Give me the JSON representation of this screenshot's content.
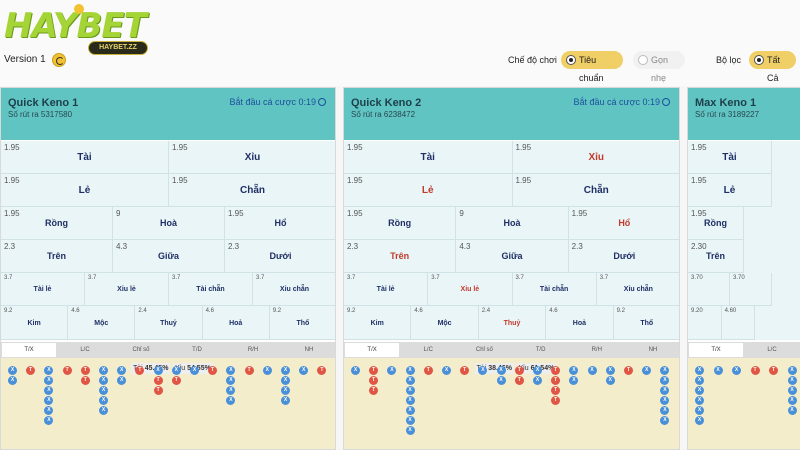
{
  "header": {
    "logo_text": "HAYBET",
    "version_label": "Version 1",
    "url_badge": "HAYBET.ZZ",
    "mode_label": "Chế độ chơi",
    "mode_options": [
      "Tiêu chuẩn",
      "Gọn nhẹ"
    ],
    "filter_label": "Bộ lọc",
    "filter_option": "Tất Cả"
  },
  "colors": {
    "teal": "#60c5c2",
    "accent": "#f0cf66",
    "tai": "#e05544",
    "xiu": "#4a90d8"
  },
  "panels": [
    {
      "title": "Quick Keno 1",
      "draw": "Số rút ra 5317580",
      "start": "Bắt đầu cá cược 0:19",
      "r1": [
        {
          "odds": "1.95",
          "label": "Tài"
        },
        {
          "odds": "1.95",
          "label": "Xỉu"
        }
      ],
      "r2": [
        {
          "odds": "1.95",
          "label": "Lẻ"
        },
        {
          "odds": "1.95",
          "label": "Chẵn"
        }
      ],
      "r3": [
        {
          "odds": "1.95",
          "label": "Rồng"
        },
        {
          "odds": "9",
          "label": "Hoà"
        },
        {
          "odds": "1.95",
          "label": "Hổ"
        }
      ],
      "r4": [
        {
          "odds": "2.3",
          "label": "Trên"
        },
        {
          "odds": "4.3",
          "label": "Giữa"
        },
        {
          "odds": "2.3",
          "label": "Dưới"
        }
      ],
      "r5": [
        {
          "odds": "3.7",
          "label": "Tài lẻ"
        },
        {
          "odds": "3.7",
          "label": "Xỉu lẻ"
        },
        {
          "odds": "3.7",
          "label": "Tài chẵn"
        },
        {
          "odds": "3.7",
          "label": "Xỉu chẵn"
        }
      ],
      "r6": [
        {
          "odds": "9.2",
          "label": "Kim"
        },
        {
          "odds": "4.6",
          "label": "Mộc"
        },
        {
          "odds": "2.4",
          "label": "Thuỷ"
        },
        {
          "odds": "4.6",
          "label": "Hoả"
        },
        {
          "odds": "9.2",
          "label": "Thổ"
        }
      ],
      "tabs": [
        "T/X",
        "L/C",
        "Chỉ số",
        "T/D",
        "R/H",
        "NH"
      ],
      "stat_tai": "Tài",
      "stat_tai_pct": "45.45%",
      "stat_xiu": "Xỉu",
      "stat_xiu_pct": "54.55%",
      "columns": [
        "XX",
        "T",
        "XXXXXX",
        "T",
        "TT",
        "XXXXX",
        "XX",
        "T",
        "XTT",
        "XT",
        "X",
        "T",
        "XXXX",
        "T",
        "X",
        "XXXX",
        "X",
        "T",
        "TTTTTTT",
        "T",
        "T",
        "X"
      ]
    },
    {
      "title": "Quick Keno 2",
      "draw": "Số rút ra 6238472",
      "start": "Bắt đầu cá cược 0:19",
      "r1": [
        {
          "odds": "1.95",
          "label": "Tài"
        },
        {
          "odds": "1.95",
          "label": "Xỉu"
        }
      ],
      "r2": [
        {
          "odds": "1.95",
          "label": "Lẻ"
        },
        {
          "odds": "1.95",
          "label": "Chẵn"
        }
      ],
      "r3": [
        {
          "odds": "1.95",
          "label": "Rồng"
        },
        {
          "odds": "9",
          "label": "Hoà"
        },
        {
          "odds": "1.95",
          "label": "Hổ"
        }
      ],
      "r4": [
        {
          "odds": "2.3",
          "label": "Trên"
        },
        {
          "odds": "4.3",
          "label": "Giữa"
        },
        {
          "odds": "2.3",
          "label": "Dưới"
        }
      ],
      "r5": [
        {
          "odds": "3.7",
          "label": "Tài lẻ"
        },
        {
          "odds": "3.7",
          "label": "Xỉu lẻ"
        },
        {
          "odds": "3.7",
          "label": "Tài chẵn"
        },
        {
          "odds": "3.7",
          "label": "Xỉu chẵn"
        }
      ],
      "r6": [
        {
          "odds": "9.2",
          "label": "Kim"
        },
        {
          "odds": "4.6",
          "label": "Mộc"
        },
        {
          "odds": "2.4",
          "label": "Thuỷ"
        },
        {
          "odds": "4.6",
          "label": "Hoả"
        },
        {
          "odds": "9.2",
          "label": "Thổ"
        }
      ],
      "tabs": [
        "T/X",
        "L/C",
        "Chỉ số",
        "T/D",
        "R/H",
        "NH"
      ],
      "stat_tai": "Tài",
      "stat_tai_pct": "38.46%",
      "stat_xiu": "Xỉu",
      "stat_xiu_pct": "61.54%",
      "columns": [
        "X",
        "TTT",
        "X",
        "XXXXXXX",
        "T",
        "X",
        "T",
        "X",
        "XX",
        "TT",
        "XX",
        "TTTT",
        "XX",
        "X",
        "XX",
        "T",
        "X",
        "XXXXXX"
      ]
    },
    {
      "title": "Max Keno 1",
      "draw": "Số rút ra 3189227",
      "r1": [
        {
          "odds": "1.95",
          "label": "Tài"
        }
      ],
      "r2": [
        {
          "odds": "1.95",
          "label": "Lẻ"
        }
      ],
      "r3": [
        {
          "odds": "1.95",
          "label": "Rồng"
        }
      ],
      "r4": [
        {
          "odds": "2.30",
          "label": "Trên"
        }
      ],
      "r5": [
        {
          "odds": "3.70",
          "label": ""
        },
        {
          "odds": "3.70",
          "label": ""
        }
      ],
      "r6": [
        {
          "odds": "9.20",
          "label": ""
        },
        {
          "odds": "4.60",
          "label": ""
        }
      ],
      "tabs": [
        "T/X",
        "L/C"
      ],
      "columns": [
        "XXXXXX",
        "X",
        "X",
        "T",
        "T",
        "XXXXX",
        "TTT"
      ]
    }
  ]
}
